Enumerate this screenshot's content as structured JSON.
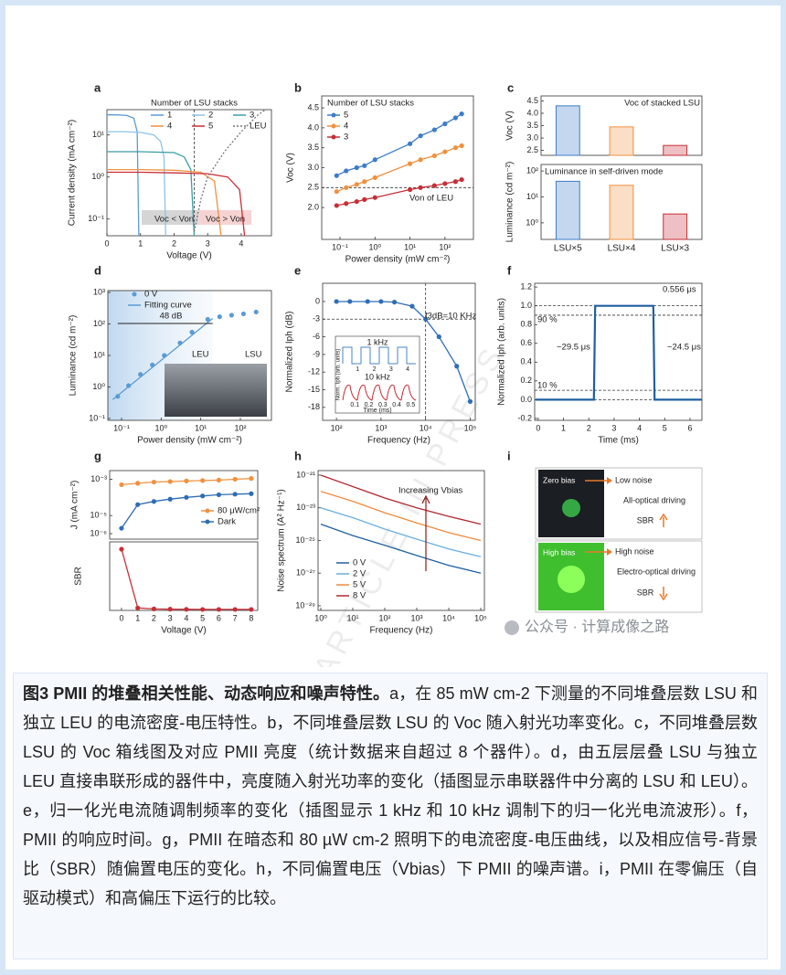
{
  "chart_data": [
    {
      "type": "line",
      "panel": "a",
      "xlabel": "Voltage (V)",
      "ylabel": "Current density (mA cm⁻²)",
      "xlim": [
        0,
        4.9
      ],
      "xticks": [
        0,
        1,
        2,
        3,
        4
      ],
      "ylim": [
        0.04,
        40
      ],
      "yscale": "log",
      "yticks": [
        {
          "value": 0.1,
          "label": "10⁻¹"
        },
        {
          "value": 1,
          "label": "10⁰"
        },
        {
          "value": 10,
          "label": "10¹"
        }
      ],
      "legend_title": "Number of LSU stacks",
      "series": [
        {
          "name": "1",
          "color": "#5b9bd5",
          "x": [
            0,
            0.3,
            0.6,
            0.8,
            0.9,
            0.95
          ],
          "values": [
            30,
            30,
            29,
            25,
            12,
            0.04
          ]
        },
        {
          "name": "2",
          "color": "#8ec3e6",
          "x": [
            0,
            0.5,
            1,
            1.4,
            1.6,
            1.7,
            1.75
          ],
          "values": [
            12,
            12,
            11.5,
            10,
            7,
            3,
            0.04
          ]
        },
        {
          "name": "3",
          "color": "#3a9ea5",
          "x": [
            0,
            1,
            2,
            2.3,
            2.5,
            2.6
          ],
          "values": [
            4,
            4,
            3.8,
            3,
            1.5,
            0.04
          ]
        },
        {
          "name": "4",
          "color": "#f0913e",
          "x": [
            0,
            1,
            2,
            2.8,
            3.2,
            3.4
          ],
          "values": [
            1.5,
            1.5,
            1.45,
            1.3,
            0.8,
            0.04
          ]
        },
        {
          "name": "5",
          "color": "#c62f37",
          "x": [
            0,
            1,
            2,
            3,
            3.6,
            3.95,
            4.1
          ],
          "values": [
            1.3,
            1.3,
            1.25,
            1.2,
            1,
            0.5,
            0.04
          ]
        },
        {
          "name": "LEU",
          "color": "#777777",
          "dash": true,
          "x": [
            2.6,
            2.8,
            3,
            3.5,
            4,
            4.5,
            4.9
          ],
          "values": [
            0.05,
            0.3,
            1,
            4,
            12,
            30,
            50
          ]
        }
      ],
      "ref_lines": [
        {
          "axis": "x",
          "value": 2.6
        }
      ],
      "annotations": [
        "Voc < Von",
        "Voc > Von"
      ]
    },
    {
      "type": "line",
      "panel": "b",
      "xlabel": "Power density (mW cm⁻²)",
      "ylabel": "Voc (V)",
      "xscale": "log",
      "xlim": [
        0.03,
        650
      ],
      "xticks": [
        {
          "value": 0.1,
          "label": "10⁻¹"
        },
        {
          "value": 1,
          "label": "10⁰"
        },
        {
          "value": 10,
          "label": "10¹"
        },
        {
          "value": 100,
          "label": "10²"
        }
      ],
      "ylim": [
        1.2,
        4.8
      ],
      "yticks": [
        {
          "value": 2,
          "label": "2.0"
        },
        2.5,
        {
          "value": 3,
          "label": "3.0"
        },
        3.5,
        {
          "value": 4,
          "label": "4.0"
        },
        4.5
      ],
      "legend_title": "Number of LSU stacks",
      "series": [
        {
          "name": "5",
          "color": "#3d7cc9",
          "markers": true,
          "x": [
            0.08,
            0.15,
            0.3,
            0.5,
            1,
            10,
            20,
            50,
            100,
            200,
            300
          ],
          "values": [
            2.8,
            2.92,
            3,
            3.05,
            3.2,
            3.6,
            3.8,
            3.95,
            4.1,
            4.25,
            4.35
          ]
        },
        {
          "name": "4",
          "color": "#f0913e",
          "markers": true,
          "x": [
            0.08,
            0.15,
            0.3,
            0.5,
            1,
            10,
            20,
            50,
            100,
            200,
            300
          ],
          "values": [
            2.4,
            2.5,
            2.58,
            2.65,
            2.75,
            3.1,
            3.2,
            3.3,
            3.4,
            3.5,
            3.55
          ]
        },
        {
          "name": "3",
          "color": "#c62f37",
          "markers": true,
          "x": [
            0.08,
            0.15,
            0.3,
            0.5,
            1,
            10,
            20,
            50,
            100,
            200,
            300
          ],
          "values": [
            2.05,
            2.1,
            2.15,
            2.2,
            2.25,
            2.45,
            2.5,
            2.55,
            2.6,
            2.65,
            2.7
          ]
        }
      ],
      "ref_lines": [
        {
          "axis": "y",
          "value": 2.5
        }
      ],
      "annotations": [
        "Von of LEU"
      ]
    },
    {
      "type": "bar",
      "panel": "c",
      "ylabel": "Voc (V)",
      "ylim": [
        2.3,
        4.7
      ],
      "yticks": [
        2.5,
        {
          "value": 3,
          "label": "3.0"
        },
        3.5,
        {
          "value": 4,
          "label": "4.0"
        },
        4.5
      ],
      "values": [
        4.3,
        3.45,
        2.7
      ],
      "colors": [
        "#3d7cc9",
        "#f0913e",
        "#c62f37"
      ],
      "annotations": [
        "Voc of stacked LSU"
      ]
    },
    {
      "type": "bar",
      "ylabel": "Luminance (cd m⁻²)",
      "yscale": "log",
      "ylim": [
        0.23,
        178
      ],
      "yticks": [
        {
          "value": 1,
          "label": "10⁰"
        },
        {
          "value": 10,
          "label": "10¹"
        },
        {
          "value": 100,
          "label": "10²"
        }
      ],
      "categories": [
        "LSU×5",
        "LSU×4",
        "LSU×3"
      ],
      "values": [
        40,
        28,
        2.2
      ],
      "colors": [
        "#3d7cc9",
        "#f0913e",
        "#c62f37"
      ],
      "annotations": [
        "Luminance in self-driven mode"
      ]
    },
    {
      "type": "line",
      "panel": "d",
      "xlabel": "Power density (mW cm⁻²)",
      "ylabel": "Luminance (cd m⁻²)",
      "xscale": "log",
      "xlim": [
        0.045,
        610
      ],
      "xticks": [
        {
          "value": 0.1,
          "label": "10⁻¹"
        },
        {
          "value": 1,
          "label": "10⁰"
        },
        {
          "value": 10,
          "label": "10¹"
        },
        {
          "value": 100,
          "label": "10²"
        }
      ],
      "yscale": "log",
      "ylim": [
        0.087,
        1150
      ],
      "yticks": [
        {
          "value": 0.1,
          "label": "10⁻¹"
        },
        {
          "value": 1,
          "label": "10⁰"
        },
        {
          "value": 10,
          "label": "10¹"
        },
        {
          "value": 100,
          "label": "10²"
        },
        {
          "value": 1000,
          "label": "10³"
        }
      ],
      "series": [
        {
          "name": "0 V",
          "color": "#5b9bd5",
          "markers": true,
          "line": false,
          "x": [
            0.08,
            0.15,
            0.3,
            0.6,
            1.2,
            3,
            6,
            15,
            30,
            60,
            120,
            250
          ],
          "values": [
            0.5,
            1.1,
            2.5,
            5,
            10,
            25,
            55,
            140,
            170,
            190,
            210,
            240
          ]
        },
        {
          "name": "Fitting curve",
          "color": "#5b9bd5",
          "x": [
            0.06,
            20
          ],
          "values": [
            0.4,
            150
          ]
        }
      ],
      "annotations": [
        "48 dB",
        "LEU",
        "LSU"
      ]
    },
    {
      "type": "line",
      "panel": "e",
      "xlabel": "Frequency (Hz)",
      "ylabel": "Normalized Iph (dB)",
      "xscale": "log",
      "xlim": [
        49,
        130000
      ],
      "xticks": [
        {
          "value": 100,
          "label": "10²"
        },
        {
          "value": 1000,
          "label": "10³"
        },
        {
          "value": 10000,
          "label": "10⁴"
        },
        {
          "value": 100000,
          "label": "10⁵"
        }
      ],
      "ylim": [
        -20.2,
        3.1
      ],
      "yticks": [
        0,
        -3,
        -6,
        -9,
        -12,
        -15,
        -18
      ],
      "series": [
        {
          "name": "Iph",
          "color": "#2f6db5",
          "markers": true,
          "x": [
            100,
            200,
            500,
            1000,
            2000,
            5000,
            10000,
            20000,
            50000,
            100000
          ],
          "values": [
            0,
            0,
            0,
            0,
            -0.1,
            -0.8,
            -3,
            -6,
            -11,
            -17
          ]
        }
      ],
      "ref_lines": [
        {
          "axis": "y",
          "value": -3
        },
        {
          "axis": "x",
          "value": 10000
        }
      ],
      "annotations": [
        "f3dB=10 KHz"
      ],
      "inset": {
        "labels": [
          "1 kHz",
          "10 kHz"
        ],
        "xlabel": "Time (ms)",
        "ylabel": "Norm. Iph (arb. units)",
        "top_ticks": [
          1,
          2,
          3,
          4
        ],
        "bottom_ticks": [
          0.1,
          0.2,
          0.3,
          0.4,
          0.5
        ]
      }
    },
    {
      "type": "line",
      "panel": "f",
      "xlabel": "Time (ms)",
      "ylabel": "Normalized Iph (arb. units)",
      "xlim": [
        -0.14,
        6.47
      ],
      "xticks": [
        0,
        1,
        2,
        3,
        4,
        5,
        6
      ],
      "ylim": [
        -0.22,
        1.24
      ],
      "yticks": [
        -0.2,
        {
          "value": 0,
          "label": "0.0"
        },
        0.2,
        0.4,
        0.6,
        0.8,
        {
          "value": 1,
          "label": "1.0"
        },
        1.2
      ],
      "series": [
        {
          "name": "Iph",
          "color": "#1f5fa0",
          "x": [
            -0.1,
            2.2,
            2.25,
            4.55,
            4.6,
            6.45
          ],
          "values": [
            0,
            0,
            1,
            1,
            0,
            0
          ]
        }
      ],
      "ref_lines": [
        {
          "axis": "y",
          "value": 1
        },
        {
          "axis": "y",
          "value": 0.9
        },
        {
          "axis": "y",
          "value": 0.1
        },
        {
          "axis": "y",
          "value": 0
        }
      ],
      "annotations": [
        "0.556 μs",
        "90 %",
        "10 %",
        "~29.5 μs",
        "~24.5 μs"
      ]
    },
    {
      "type": "line",
      "panel": "g",
      "ylabel": "J (mA cm⁻²)",
      "xlim": [
        -0.73,
        8.4
      ],
      "yscale": "log",
      "ylim": [
        5e-07,
        0.003
      ],
      "yticks": [
        {
          "value": 1e-06,
          "label": "10⁻⁶"
        },
        {
          "value": 1e-05,
          "label": "10⁻⁵"
        },
        {
          "value": 0.001,
          "label": "10⁻³"
        }
      ],
      "series": [
        {
          "name": "80 μW/cm²",
          "color": "#f0913e",
          "markers": true,
          "x": [
            0,
            1,
            2,
            3,
            4,
            5,
            6,
            7,
            8
          ],
          "values": [
            0.0005,
            0.0006,
            0.0007,
            0.00075,
            0.0008,
            0.00085,
            0.0009,
            0.001,
            0.0011
          ]
        },
        {
          "name": "Dark",
          "color": "#2f6db5",
          "markers": true,
          "x": [
            0,
            1,
            2,
            3,
            4,
            5,
            6,
            7,
            8
          ],
          "values": [
            2e-06,
            4e-05,
            6e-05,
            8e-05,
            0.0001,
            0.00012,
            0.00014,
            0.00015,
            0.00016
          ]
        }
      ]
    },
    {
      "type": "line",
      "xlabel": "Voltage (V)",
      "ylabel": "SBR",
      "xlim": [
        -0.73,
        8.4
      ],
      "xticks": [
        0,
        1,
        2,
        3,
        4,
        5,
        6,
        7,
        8
      ],
      "ylim": [
        0,
        280
      ],
      "series": [
        {
          "name": "SBR",
          "color": "#c62f37",
          "markers": true,
          "x": [
            0,
            1,
            2,
            3,
            4,
            5,
            6,
            7,
            8
          ],
          "values": [
            250,
            10,
            6,
            5,
            4.5,
            4,
            4,
            4,
            4
          ]
        }
      ]
    },
    {
      "type": "line",
      "panel": "h",
      "xlabel": "Frequency (Hz)",
      "ylabel": "Noise spectrum (A² Hz⁻¹)",
      "xscale": "log",
      "xlim": [
        0.82,
        130000
      ],
      "xticks": [
        {
          "value": 1,
          "label": "10⁰"
        },
        {
          "value": 10,
          "label": "10¹"
        },
        {
          "value": 100,
          "label": "10²"
        },
        {
          "value": 1000,
          "label": "10³"
        },
        {
          "value": 10000,
          "label": "10⁴"
        },
        {
          "value": 100000,
          "label": "10⁵"
        }
      ],
      "yscale": "log",
      "ylim": [
        5.2e-30,
        1.9e-21
      ],
      "yticks": [
        {
          "value": 1e-29,
          "label": "10⁻²⁹"
        },
        {
          "value": 1e-27,
          "label": "10⁻²⁷"
        },
        {
          "value": 1e-25,
          "label": "10⁻²⁵"
        },
        {
          "value": 1e-23,
          "label": "10⁻²³"
        },
        {
          "value": 1e-21,
          "label": "10⁻²¹"
        }
      ],
      "series": [
        {
          "name": "0 V",
          "color": "#1f5fa0",
          "x": [
            1,
            10,
            100,
            1000,
            10000,
            100000
          ],
          "values": [
            1e-24,
            2e-25,
            5e-26,
            1.2e-26,
            3e-27,
            1e-27
          ]
        },
        {
          "name": "2 V",
          "color": "#6aaee0",
          "x": [
            1,
            10,
            100,
            1000,
            10000,
            100000
          ],
          "values": [
            1e-23,
            2.5e-24,
            5e-25,
            1.2e-25,
            3e-26,
            1e-26
          ]
        },
        {
          "name": "5 V",
          "color": "#f08a3e",
          "x": [
            1,
            10,
            100,
            1000,
            10000,
            100000
          ],
          "values": [
            1e-22,
            2.5e-23,
            5e-24,
            1.2e-24,
            3e-25,
            1e-25
          ]
        },
        {
          "name": "8 V",
          "color": "#b0282e",
          "x": [
            1,
            10,
            100,
            1000,
            10000,
            100000
          ],
          "values": [
            1e-21,
            2e-22,
            4e-23,
            1e-23,
            3e-24,
            1e-24
          ]
        }
      ],
      "annotations": [
        "Increasing Vbias"
      ]
    }
  ],
  "panel_i": {
    "panel": "i",
    "top": {
      "left": "Zero bias",
      "right": "Low noise",
      "mode": "All-optical driving",
      "metric": "SBR"
    },
    "bottom": {
      "left": "High bias",
      "right": "High noise",
      "mode": "Electro-optical driving",
      "metric": "SBR"
    }
  },
  "watermark_stamp": "ARTICLE IN PRESS",
  "source_label": "公众号 · 计算成像之路",
  "caption": {
    "title": "图3 PMII 的堆叠相关性能、动态响应和噪声特性。",
    "body": "a，在 85 mW cm-2 下测量的不同堆叠层数 LSU 和独立 LEU 的电流密度-电压特性。b，不同堆叠层数 LSU 的 Voc 随入射光功率变化。c，不同堆叠层数 LSU 的 Voc 箱线图及对应 PMII 亮度（统计数据来自超过 8 个器件）。d，由五层层叠 LSU 与独立 LEU 直接串联形成的器件中，亮度随入射光功率的变化（插图显示串联器件中分离的 LSU 和 LEU）。e，归一化光电流随调制频率的变化（插图显示 1 kHz 和 10 kHz 调制下的归一化光电流波形）。f，PMII 的响应时间。g，PMII 在暗态和 80 µW cm-2 照明下的电流密度-电压曲线，以及相应信号-背景比（SBR）随偏置电压的变化。h，不同偏置电压（Vbias）下 PMII 的噪声谱。i，PMII 在零偏压（自驱动模式）和高偏压下运行的比较。"
  }
}
